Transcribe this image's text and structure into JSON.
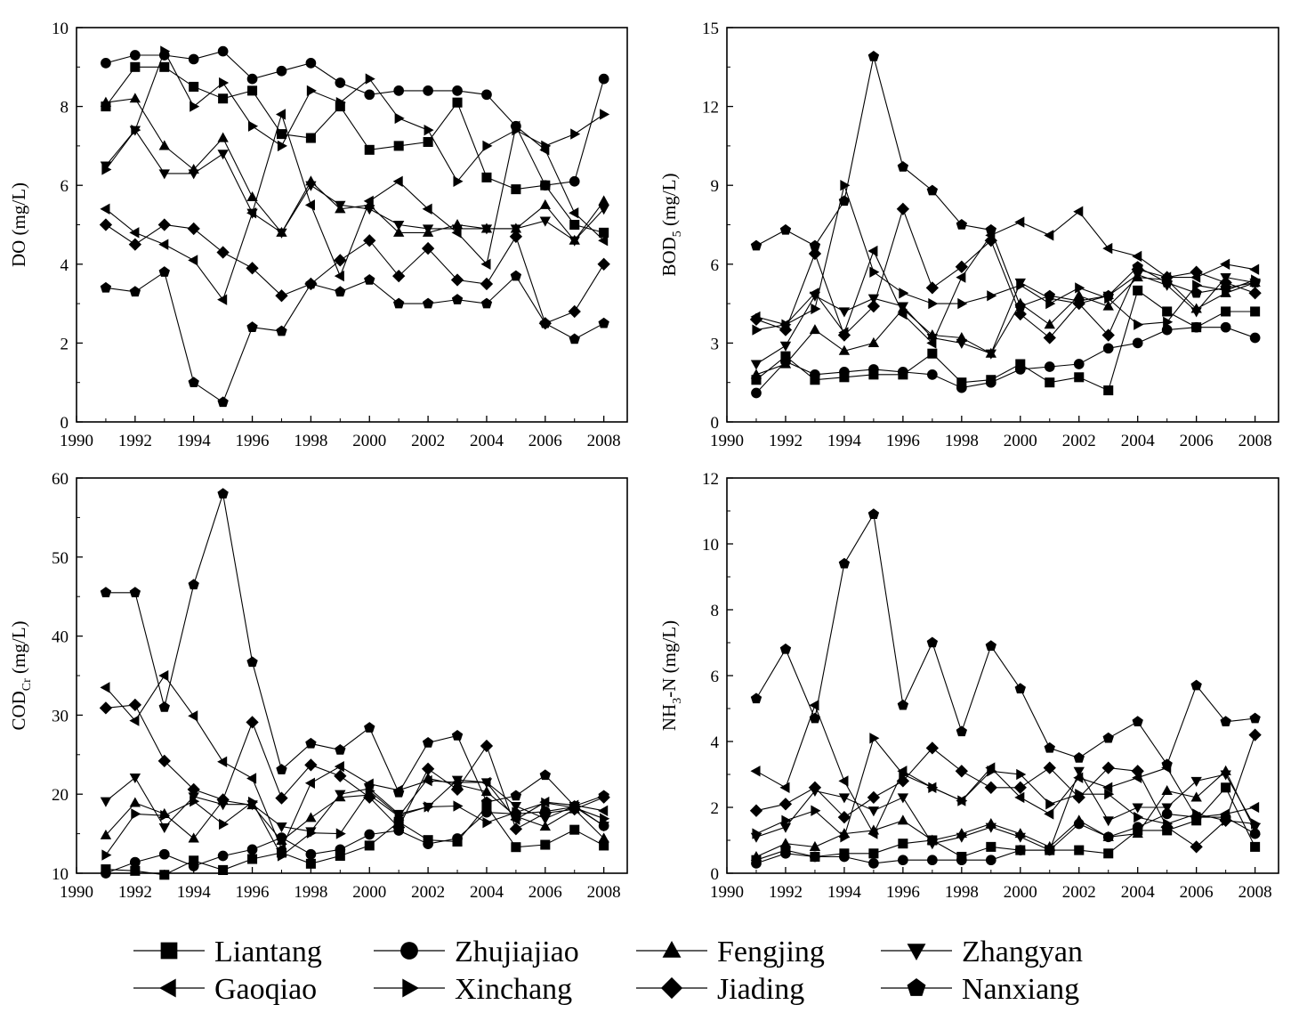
{
  "legend": [
    {
      "name": "Liantang",
      "marker": "square"
    },
    {
      "name": "Zhujiajiao",
      "marker": "circle"
    },
    {
      "name": "Fengjing",
      "marker": "triangle-up"
    },
    {
      "name": "Zhangyan",
      "marker": "triangle-down"
    },
    {
      "name": "Gaoqiao",
      "marker": "triangle-left"
    },
    {
      "name": "Xinchang",
      "marker": "triangle-right"
    },
    {
      "name": "Jiading",
      "marker": "diamond"
    },
    {
      "name": "Nanxiang",
      "marker": "pentagon"
    }
  ],
  "colors": {
    "line": "#000000",
    "marker": "#000000",
    "axis": "#000000",
    "background": "#ffffff"
  },
  "chart_data": [
    {
      "type": "line",
      "panel": "top-left",
      "ylabel": "DO (mg/L)",
      "ylabel_main": "DO (mg/L)",
      "ylabel_sub": "",
      "ylabel_rest": "",
      "xlim": [
        1990,
        2008.8
      ],
      "ylim": [
        0,
        10
      ],
      "xticks": [
        1990,
        1992,
        1994,
        1996,
        1998,
        2000,
        2002,
        2004,
        2006,
        2008
      ],
      "yticks": [
        0,
        2,
        4,
        6,
        8,
        10
      ],
      "x": [
        1991,
        1992,
        1993,
        1994,
        1995,
        1996,
        1997,
        1998,
        1999,
        2000,
        2001,
        2002,
        2003,
        2004,
        2005,
        2006,
        2007,
        2008
      ],
      "series": [
        {
          "name": "Liantang",
          "values": [
            8.0,
            9.0,
            9.0,
            8.5,
            8.2,
            8.4,
            7.3,
            7.2,
            8.0,
            6.9,
            7.0,
            7.1,
            8.1,
            6.2,
            5.9,
            6.0,
            5.0,
            4.8
          ]
        },
        {
          "name": "Zhujiajiao",
          "values": [
            9.1,
            9.3,
            9.3,
            9.2,
            9.4,
            8.7,
            8.9,
            9.1,
            8.6,
            8.3,
            8.4,
            8.4,
            8.4,
            8.3,
            7.5,
            6.0,
            6.1,
            8.7
          ]
        },
        {
          "name": "Fengjing",
          "values": [
            8.1,
            8.2,
            7.0,
            6.4,
            7.2,
            5.7,
            4.8,
            6.1,
            5.4,
            5.5,
            4.8,
            4.8,
            5.0,
            4.9,
            4.9,
            5.5,
            4.6,
            5.6
          ]
        },
        {
          "name": "Zhangyan",
          "values": [
            6.5,
            7.4,
            6.3,
            6.3,
            6.8,
            5.3,
            4.8,
            6.0,
            5.5,
            5.4,
            5.0,
            4.9,
            4.9,
            4.9,
            4.9,
            5.1,
            4.6,
            5.4
          ]
        },
        {
          "name": "Gaoqiao",
          "values": [
            5.4,
            4.8,
            4.5,
            4.1,
            3.1,
            5.3,
            7.8,
            5.5,
            3.7,
            5.6,
            6.1,
            5.4,
            4.8,
            4.0,
            7.5,
            6.9,
            5.3,
            4.6
          ]
        },
        {
          "name": "Xinchang",
          "values": [
            6.4,
            7.4,
            9.4,
            8.0,
            8.6,
            7.5,
            7.0,
            8.4,
            8.1,
            8.7,
            7.7,
            7.4,
            6.1,
            7.0,
            7.4,
            7.0,
            7.3,
            7.8
          ]
        },
        {
          "name": "Jiading",
          "values": [
            5.0,
            4.5,
            5.0,
            4.9,
            4.3,
            3.9,
            3.2,
            3.5,
            4.1,
            4.6,
            3.7,
            4.4,
            3.6,
            3.5,
            4.7,
            2.5,
            2.8,
            4.0
          ]
        },
        {
          "name": "Nanxiang",
          "values": [
            3.4,
            3.3,
            3.8,
            1.0,
            0.5,
            2.4,
            2.3,
            3.5,
            3.3,
            3.6,
            3.0,
            3.0,
            3.1,
            3.0,
            3.7,
            2.5,
            2.1,
            2.5
          ]
        }
      ]
    },
    {
      "type": "line",
      "panel": "top-right",
      "ylabel": "BOD5 (mg/L)",
      "ylabel_main": "BOD",
      "ylabel_sub": "5",
      "ylabel_rest": " (mg/L)",
      "xlim": [
        1990,
        2008.8
      ],
      "ylim": [
        0,
        15
      ],
      "xticks": [
        1990,
        1992,
        1994,
        1996,
        1998,
        2000,
        2002,
        2004,
        2006,
        2008
      ],
      "yticks": [
        0,
        3,
        6,
        9,
        12,
        15
      ],
      "x": [
        1991,
        1992,
        1993,
        1994,
        1995,
        1996,
        1997,
        1998,
        1999,
        2000,
        2001,
        2002,
        2003,
        2004,
        2005,
        2006,
        2007,
        2008
      ],
      "series": [
        {
          "name": "Liantang",
          "values": [
            1.6,
            2.5,
            1.6,
            1.7,
            1.8,
            1.8,
            2.6,
            1.5,
            1.6,
            2.2,
            1.5,
            1.7,
            1.2,
            5.0,
            4.2,
            3.6,
            4.2,
            4.2
          ]
        },
        {
          "name": "Zhujiajiao",
          "values": [
            1.1,
            2.3,
            1.8,
            1.9,
            2.0,
            1.9,
            1.8,
            1.3,
            1.5,
            2.0,
            2.1,
            2.2,
            2.8,
            3.0,
            3.5,
            3.6,
            3.6,
            3.2
          ]
        },
        {
          "name": "Fengjing",
          "values": [
            1.8,
            2.2,
            3.5,
            2.7,
            3.0,
            4.3,
            3.3,
            3.2,
            2.6,
            4.5,
            3.7,
            4.8,
            4.4,
            5.5,
            5.4,
            4.3,
            4.9,
            5.3
          ]
        },
        {
          "name": "Zhangyan",
          "values": [
            2.2,
            2.9,
            4.8,
            4.2,
            4.7,
            4.4,
            3.2,
            3.0,
            2.6,
            5.3,
            4.7,
            4.5,
            4.8,
            5.6,
            5.2,
            4.2,
            5.5,
            5.3
          ]
        },
        {
          "name": "Gaoqiao",
          "values": [
            4.0,
            3.7,
            4.9,
            3.4,
            6.5,
            4.1,
            3.0,
            5.5,
            7.1,
            7.6,
            7.1,
            8.0,
            6.6,
            6.3,
            5.5,
            5.5,
            6.0,
            5.8
          ]
        },
        {
          "name": "Xinchang",
          "values": [
            3.5,
            3.7,
            4.3,
            9.0,
            5.7,
            4.9,
            4.5,
            4.5,
            4.8,
            5.2,
            4.5,
            5.1,
            4.7,
            3.7,
            3.8,
            5.2,
            5.0,
            5.4
          ]
        },
        {
          "name": "Jiading",
          "values": [
            3.9,
            3.5,
            6.4,
            3.3,
            4.4,
            8.1,
            5.1,
            5.9,
            6.9,
            4.1,
            3.2,
            4.5,
            3.3,
            5.8,
            5.5,
            5.7,
            5.3,
            4.9
          ]
        },
        {
          "name": "Nanxiang",
          "values": [
            6.7,
            7.3,
            6.7,
            8.4,
            13.9,
            9.7,
            8.8,
            7.5,
            7.3,
            4.4,
            4.8,
            4.6,
            4.8,
            5.9,
            5.3,
            4.9,
            5.1,
            5.3
          ]
        }
      ]
    },
    {
      "type": "line",
      "panel": "bottom-left",
      "ylabel": "CODCr (mg/L)",
      "ylabel_main": "COD",
      "ylabel_sub": "Cr",
      "ylabel_rest": " (mg/L)",
      "xlim": [
        1990,
        2008.8
      ],
      "ylim": [
        10,
        60
      ],
      "xticks": [
        1990,
        1992,
        1994,
        1996,
        1998,
        2000,
        2002,
        2004,
        2006,
        2008
      ],
      "yticks": [
        10,
        20,
        30,
        40,
        50,
        60
      ],
      "x": [
        1991,
        1992,
        1993,
        1994,
        1995,
        1996,
        1997,
        1998,
        1999,
        2000,
        2001,
        2002,
        2003,
        2004,
        2005,
        2006,
        2007,
        2008
      ],
      "series": [
        {
          "name": "Liantang",
          "values": [
            10.5,
            10.3,
            9.8,
            11.6,
            10.4,
            11.8,
            12.6,
            11.2,
            12.2,
            13.5,
            16.5,
            14.2,
            14.0,
            18.5,
            13.3,
            13.6,
            15.5,
            13.5
          ]
        },
        {
          "name": "Zhujiajiao",
          "values": [
            10.0,
            11.4,
            12.4,
            10.9,
            12.2,
            13.0,
            14.5,
            12.4,
            13.0,
            14.9,
            15.4,
            13.7,
            14.4,
            17.7,
            17.5,
            17.8,
            18.4,
            16.0
          ]
        },
        {
          "name": "Fengjing",
          "values": [
            14.8,
            18.9,
            17.5,
            14.4,
            19.2,
            18.6,
            14.1,
            17.0,
            19.6,
            19.9,
            17.2,
            22.0,
            21.2,
            20.3,
            17.2,
            15.9,
            18.1,
            14.4
          ]
        },
        {
          "name": "Zhangyan",
          "values": [
            19.1,
            22.1,
            15.8,
            19.7,
            18.7,
            18.7,
            15.9,
            15.3,
            20.0,
            20.7,
            17.5,
            18.4,
            21.8,
            21.5,
            18.5,
            16.9,
            18.5,
            16.0
          ]
        },
        {
          "name": "Gaoqiao",
          "values": [
            33.5,
            29.3,
            35.0,
            29.9,
            24.1,
            22.0,
            13.1,
            21.4,
            23.5,
            21.3,
            20.5,
            21.7,
            21.5,
            21.5,
            16.8,
            19.0,
            18.6,
            17.9
          ]
        },
        {
          "name": "Xinchang",
          "values": [
            12.3,
            17.5,
            17.3,
            19.1,
            16.2,
            19.0,
            12.2,
            15.1,
            15.0,
            20.4,
            17.3,
            18.4,
            18.5,
            16.4,
            17.7,
            18.9,
            18.3,
            16.9
          ]
        },
        {
          "name": "Jiading",
          "values": [
            30.9,
            31.3,
            24.2,
            20.6,
            19.3,
            29.1,
            19.5,
            23.7,
            22.3,
            19.6,
            15.8,
            23.2,
            20.6,
            26.1,
            15.6,
            17.6,
            18.1,
            19.6
          ]
        },
        {
          "name": "Nanxiang",
          "values": [
            45.5,
            45.5,
            31.0,
            46.5,
            58.0,
            36.7,
            23.1,
            26.4,
            25.6,
            28.4,
            20.2,
            26.5,
            27.4,
            19.0,
            19.8,
            22.4,
            18.5,
            19.8
          ]
        }
      ]
    },
    {
      "type": "line",
      "panel": "bottom-right",
      "ylabel": "NH3-N (mg/L)",
      "ylabel_main": "NH",
      "ylabel_sub": "3",
      "ylabel_rest": "-N (mg/L)",
      "xlim": [
        1990,
        2008.8
      ],
      "ylim": [
        0,
        12
      ],
      "xticks": [
        1990,
        1992,
        1994,
        1996,
        1998,
        2000,
        2002,
        2004,
        2006,
        2008
      ],
      "yticks": [
        0,
        2,
        4,
        6,
        8,
        10,
        12
      ],
      "x": [
        1991,
        1992,
        1993,
        1994,
        1995,
        1996,
        1997,
        1998,
        1999,
        2000,
        2001,
        2002,
        2003,
        2004,
        2005,
        2006,
        2007,
        2008
      ],
      "series": [
        {
          "name": "Liantang",
          "values": [
            0.4,
            0.7,
            0.5,
            0.6,
            0.6,
            0.9,
            1.0,
            0.5,
            0.8,
            0.7,
            0.7,
            0.7,
            0.6,
            1.3,
            1.3,
            1.6,
            2.6,
            0.8
          ]
        },
        {
          "name": "Zhujiajiao",
          "values": [
            0.3,
            0.6,
            0.5,
            0.5,
            0.3,
            0.4,
            0.4,
            0.4,
            0.4,
            0.7,
            0.7,
            1.5,
            1.1,
            1.4,
            1.8,
            1.7,
            1.7,
            1.2
          ]
        },
        {
          "name": "Fengjing",
          "values": [
            0.5,
            0.9,
            0.8,
            1.2,
            1.3,
            1.6,
            1.0,
            1.2,
            1.5,
            1.2,
            0.8,
            1.6,
            1.1,
            1.2,
            2.5,
            2.3,
            3.1,
            1.3
          ]
        },
        {
          "name": "Zhangyan",
          "values": [
            1.1,
            1.4,
            2.5,
            2.3,
            1.9,
            2.3,
            0.9,
            1.1,
            1.4,
            1.1,
            0.7,
            3.1,
            1.6,
            2.0,
            2.0,
            2.8,
            3.0,
            1.4
          ]
        },
        {
          "name": "Gaoqiao",
          "values": [
            3.1,
            2.6,
            5.1,
            2.8,
            1.2,
            3.1,
            2.6,
            2.2,
            3.2,
            2.3,
            1.8,
            2.9,
            2.6,
            2.9,
            3.2,
            1.7,
            1.8,
            2.0
          ]
        },
        {
          "name": "Xinchang",
          "values": [
            1.2,
            1.6,
            1.9,
            1.1,
            4.1,
            3.0,
            2.6,
            2.2,
            3.1,
            3.0,
            2.1,
            2.4,
            2.4,
            1.7,
            1.5,
            1.8,
            1.6,
            1.5
          ]
        },
        {
          "name": "Jiading",
          "values": [
            1.9,
            2.1,
            2.6,
            1.7,
            2.3,
            2.8,
            3.8,
            3.1,
            2.6,
            2.6,
            3.2,
            2.3,
            3.2,
            3.1,
            1.4,
            0.8,
            1.6,
            4.2
          ]
        },
        {
          "name": "Nanxiang",
          "values": [
            5.3,
            6.8,
            4.7,
            9.4,
            10.9,
            5.1,
            7.0,
            4.3,
            6.9,
            5.6,
            3.8,
            3.5,
            4.1,
            4.6,
            3.3,
            5.7,
            4.6,
            4.7
          ]
        }
      ]
    }
  ]
}
